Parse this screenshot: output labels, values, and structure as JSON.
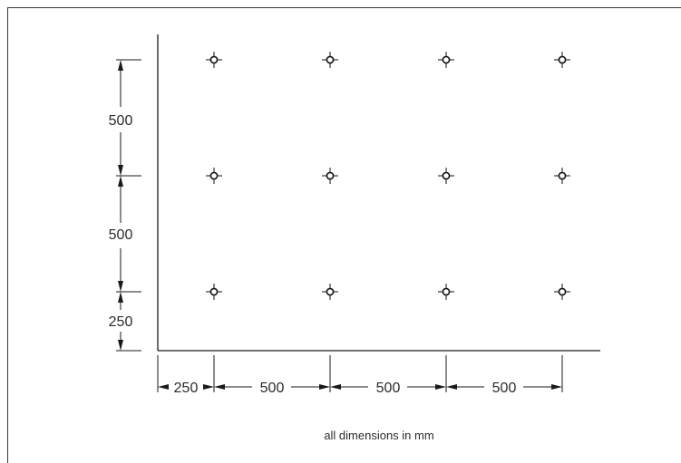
{
  "dimensions": {
    "vertical": [
      "500",
      "500",
      "250"
    ],
    "horizontal": [
      "250",
      "500",
      "500",
      "500"
    ]
  },
  "note": "all dimensions in mm",
  "grid": {
    "columns": 4,
    "rows": 3
  }
}
